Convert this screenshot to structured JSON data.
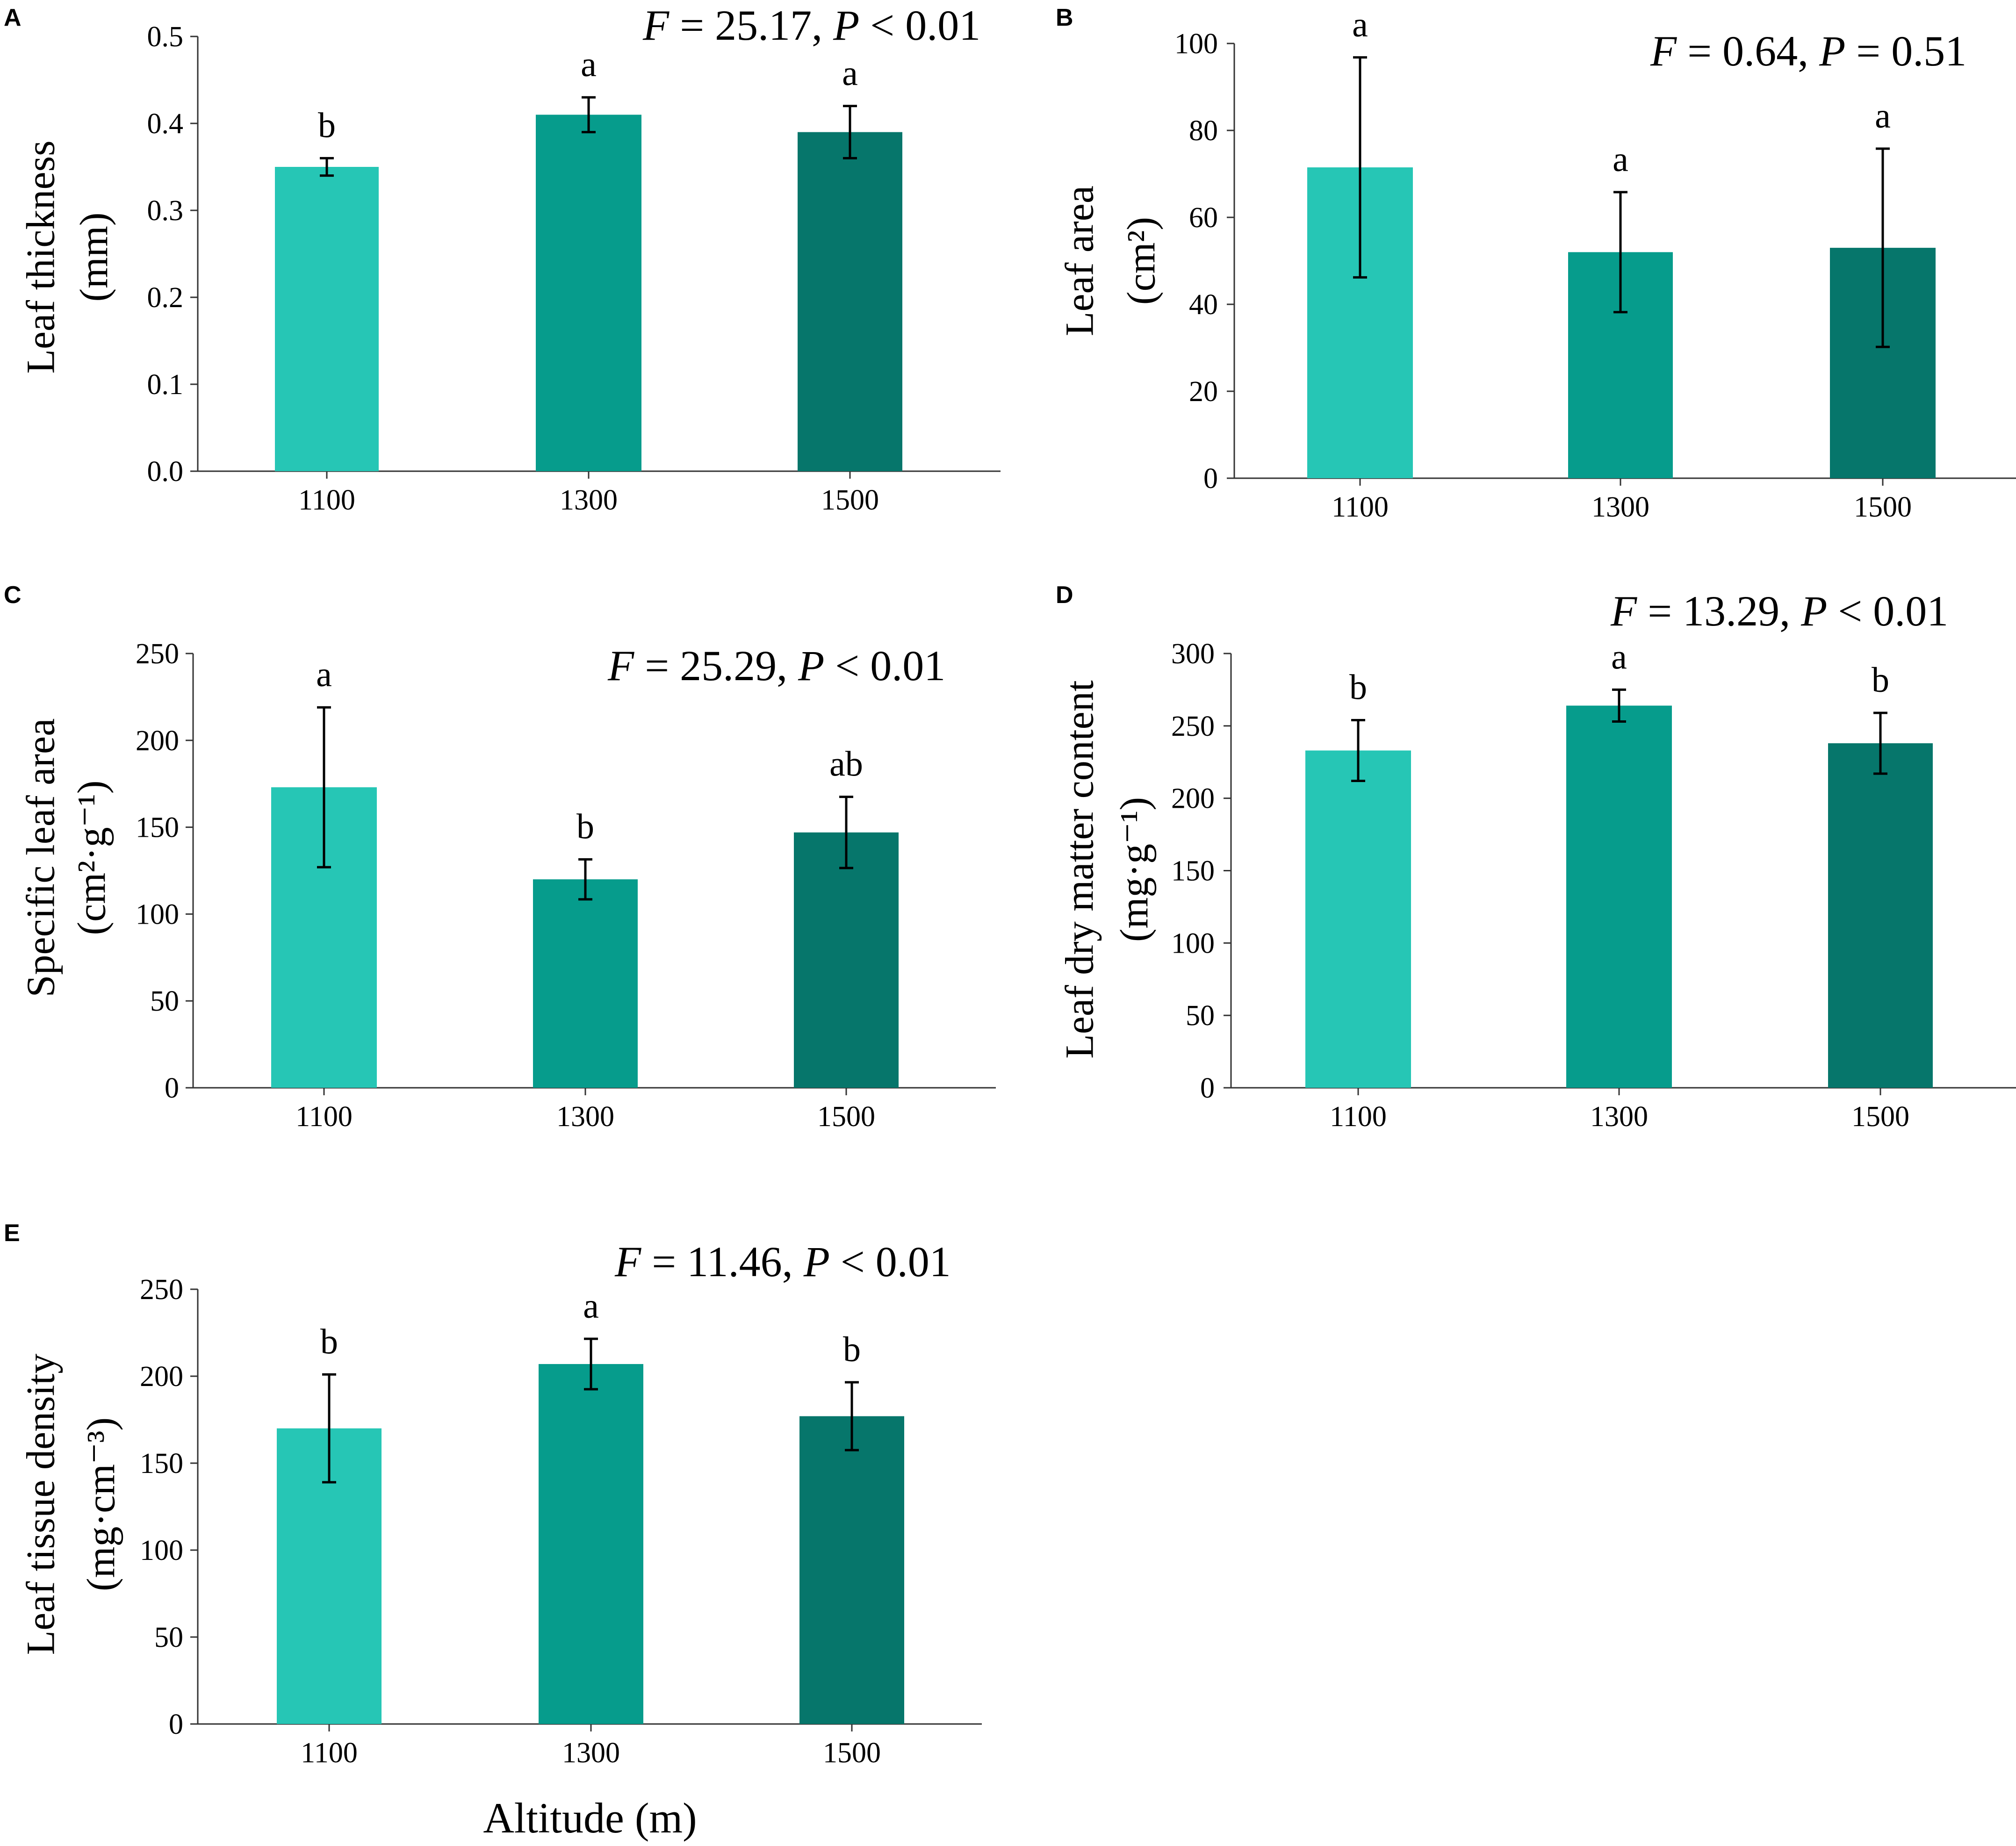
{
  "figure": {
    "x_axis_title": "Altitude (m)",
    "colors": [
      "#26c6b5",
      "#069c8c",
      "#06766b"
    ]
  },
  "chart_data": [
    {
      "panel": "A",
      "type": "bar",
      "categories": [
        "1100",
        "1300",
        "1500"
      ],
      "values": [
        0.35,
        0.41,
        0.39
      ],
      "errors": [
        0.01,
        0.02,
        0.03
      ],
      "sig_letters": [
        "b",
        "a",
        "a"
      ],
      "stat": {
        "F": "25.17",
        "P_op": "<",
        "P": "0.01"
      },
      "ylabel": "Leaf thickness",
      "yunit": "(mm)",
      "ylim": [
        0,
        0.5
      ],
      "yticks": [
        0.0,
        0.1,
        0.2,
        0.3,
        0.4,
        0.5
      ],
      "ytick_labels": [
        "0.0",
        "0.1",
        "0.2",
        "0.3",
        "0.4",
        "0.5"
      ]
    },
    {
      "panel": "B",
      "type": "bar",
      "categories": [
        "1100",
        "1300",
        "1500"
      ],
      "values": [
        71.5,
        52,
        53
      ],
      "errors": [
        25.3,
        13.8,
        22.8
      ],
      "sig_letters": [
        "a",
        "a",
        "a"
      ],
      "stat": {
        "F": "0.64",
        "P_op": "=",
        "P": "0.51"
      },
      "ylabel": "Leaf area",
      "yunit": "(cm²)",
      "ylim": [
        0,
        100
      ],
      "yticks": [
        0,
        20,
        40,
        60,
        80,
        100
      ],
      "ytick_labels": [
        "0",
        "20",
        "40",
        "60",
        "80",
        "100"
      ]
    },
    {
      "panel": "C",
      "type": "bar",
      "categories": [
        "1100",
        "1300",
        "1500"
      ],
      "values": [
        173,
        120,
        147
      ],
      "errors": [
        46,
        11.5,
        20.5
      ],
      "sig_letters": [
        "a",
        "b",
        "ab"
      ],
      "stat": {
        "F": "25.29",
        "P_op": "<",
        "P": "0.01"
      },
      "ylabel": "Specific leaf area",
      "yunit": "(cm²·g⁻¹)",
      "ylim": [
        0,
        250
      ],
      "yticks": [
        0,
        50,
        100,
        150,
        200,
        250
      ],
      "ytick_labels": [
        "0",
        "50",
        "100",
        "150",
        "200",
        "250"
      ]
    },
    {
      "panel": "D",
      "type": "bar",
      "categories": [
        "1100",
        "1300",
        "1500"
      ],
      "values": [
        233,
        264,
        238
      ],
      "errors": [
        21,
        11,
        21
      ],
      "sig_letters": [
        "b",
        "a",
        "b"
      ],
      "stat": {
        "F": "13.29",
        "P_op": "<",
        "P": "0.01"
      },
      "ylabel": "Leaf dry matter content",
      "yunit": "(mg·g⁻¹)",
      "ylim": [
        0,
        300
      ],
      "yticks": [
        0,
        50,
        100,
        150,
        200,
        250,
        300
      ],
      "ytick_labels": [
        "0",
        "50",
        "100",
        "150",
        "200",
        "250",
        "300"
      ]
    },
    {
      "panel": "E",
      "type": "bar",
      "categories": [
        "1100",
        "1300",
        "1500"
      ],
      "values": [
        170,
        207,
        177
      ],
      "errors": [
        31,
        14.5,
        19.5
      ],
      "sig_letters": [
        "b",
        "a",
        "b"
      ],
      "stat": {
        "F": "11.46",
        "P_op": "<",
        "P": "0.01"
      },
      "ylabel": "Leaf tissue density",
      "yunit": "(mg·cm⁻³)",
      "ylim": [
        0,
        250
      ],
      "yticks": [
        0,
        50,
        100,
        150,
        200,
        250
      ],
      "ytick_labels": [
        "0",
        "50",
        "100",
        "150",
        "200",
        "250"
      ]
    }
  ]
}
